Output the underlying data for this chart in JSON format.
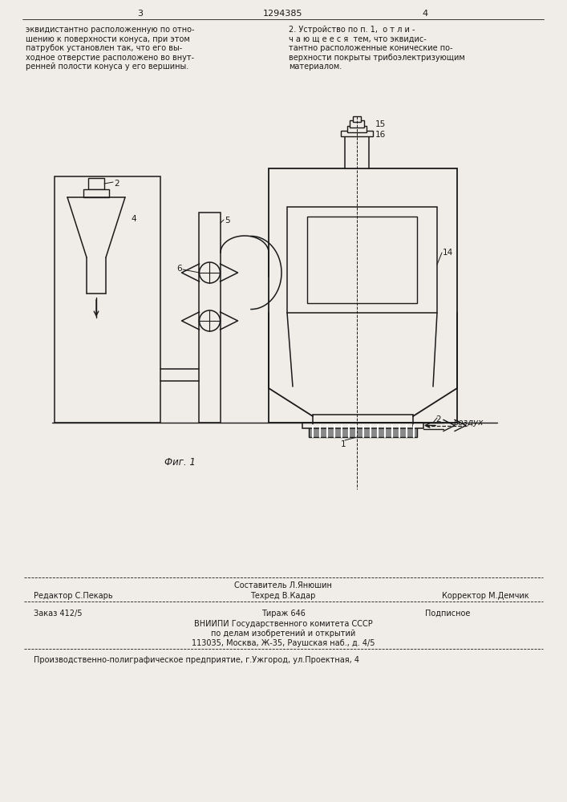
{
  "page_number_left": "3",
  "page_number_center": "1294385",
  "page_number_right": "4",
  "text_left": "эквидистантно расположенную по отно-\nшению к поверхности конуса, при этом\nпатрубок установлен так, что его вы-\nходное отверстие расположено во внут-\nренней полости конуса у его вершины.",
  "text_right": "2. Устройство по п. 1,  о т л и -\nч а ю щ е е с я  тем, что эквидис-\nтантно расположенные конические по-\nверхности покрыты трибоэлектризующим\nматериалом.",
  "fig_label": "Фиг. 1",
  "bottom_line1_left": "Редактор С.Пекарь",
  "bottom_line1_center_top": "Составитель Л.Янюшин",
  "bottom_line1_center": "Техред В.Кадар",
  "bottom_line1_right": "Корректор М.Демчик",
  "bottom_line2_left": "Заказ 412/5",
  "bottom_line2_center": "Тираж 646",
  "bottom_line2_right": "Подписное",
  "bottom_line3": "ВНИИПИ Государственного комитета СССР",
  "bottom_line4": "по делам изобретений и открытий",
  "bottom_line5": "113035, Москва, Ж-35, Раушская наб., д. 4/5",
  "bottom_line6": "Производственно-полиграфическое предприятие, г.Ужгород, ул.Проектная, 4",
  "bg_color": "#f0ede8",
  "line_color": "#1a1a1a",
  "text_color": "#1a1a1a"
}
